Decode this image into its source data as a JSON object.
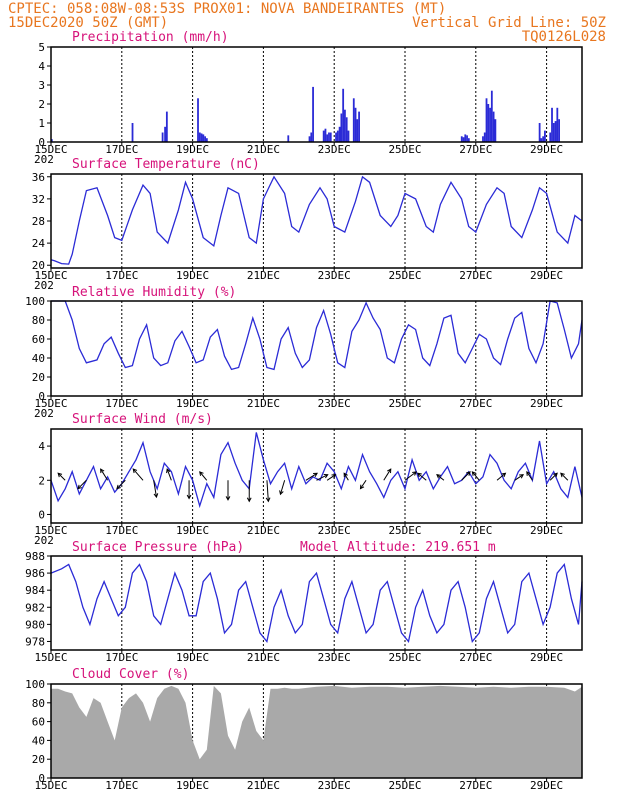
{
  "header": {
    "line1": "CPTEC:  058:08W-08:53S  PROX01: NOVA BANDEIRANTES (MT)",
    "line2_left": "15DEC2020 50Z (GMT)",
    "line2_right": "Vertical Grid Line: 50Z",
    "line3_right": "TQ0126L028"
  },
  "colors": {
    "header": "#e8761f",
    "title": "#d6127a",
    "series": "#2b2bd6",
    "cloud": "#a9a9a9",
    "arrow": "#000000"
  },
  "chart_data": [
    {
      "id": "precip",
      "type": "bar",
      "title": "Precipitation (mm/h)",
      "ylim": [
        0,
        5
      ],
      "yticks": [
        0,
        1,
        2,
        3,
        4,
        5
      ],
      "xlim": [
        0,
        15
      ],
      "xtick_labels": [
        "15DEC",
        "17DEC",
        "19DEC",
        "21DEC",
        "23DEC",
        "25DEC",
        "27DEC",
        "29DEC"
      ],
      "x_extra_label": "202",
      "x": [
        0.02,
        2.3,
        3.15,
        3.22,
        3.27,
        4.15,
        4.2,
        4.25,
        4.3,
        4.35,
        4.4,
        6.7,
        7.3,
        7.35,
        7.4,
        7.7,
        7.75,
        7.8,
        7.85,
        7.9,
        8.05,
        8.1,
        8.15,
        8.2,
        8.25,
        8.3,
        8.35,
        8.4,
        8.55,
        8.6,
        8.65,
        8.7,
        11.6,
        11.65,
        11.7,
        11.75,
        11.8,
        12.2,
        12.25,
        12.3,
        12.35,
        12.4,
        12.45,
        12.5,
        12.55,
        13.8,
        13.85,
        13.9,
        13.95,
        14.1,
        14.15,
        14.2,
        14.25,
        14.3,
        14.35
      ],
      "values": [
        0.15,
        1.0,
        0.5,
        0.8,
        1.6,
        2.3,
        0.5,
        0.45,
        0.4,
        0.3,
        0.2,
        0.35,
        0.3,
        0.5,
        2.9,
        0.6,
        0.7,
        0.4,
        0.5,
        0.5,
        0.5,
        0.6,
        0.8,
        1.5,
        2.8,
        1.7,
        1.3,
        0.6,
        2.3,
        1.8,
        1.2,
        1.6,
        0.3,
        0.25,
        0.4,
        0.35,
        0.2,
        0.3,
        0.5,
        2.3,
        2.0,
        1.8,
        2.7,
        1.6,
        1.2,
        1.0,
        0.2,
        0.3,
        0.6,
        0.5,
        1.8,
        1.0,
        1.1,
        1.8,
        1.2
      ]
    },
    {
      "id": "temp",
      "type": "line",
      "title": "Surface Temperature (nC)",
      "ylim": [
        19.5,
        36.5
      ],
      "yticks": [
        20,
        24,
        28,
        32,
        36
      ],
      "xlim": [
        0,
        15
      ],
      "xtick_labels": [
        "15DEC",
        "17DEC",
        "19DEC",
        "21DEC",
        "23DEC",
        "25DEC",
        "27DEC",
        "29DEC"
      ],
      "x_extra_label": "202",
      "x": [
        0,
        0.1,
        0.3,
        0.5,
        0.6,
        0.8,
        1.0,
        1.3,
        1.6,
        1.8,
        2.0,
        2.3,
        2.6,
        2.8,
        3.0,
        3.3,
        3.6,
        3.8,
        4.0,
        4.3,
        4.6,
        4.8,
        5.0,
        5.3,
        5.6,
        5.8,
        6.0,
        6.3,
        6.6,
        6.8,
        7.0,
        7.3,
        7.6,
        7.8,
        8.0,
        8.3,
        8.6,
        8.8,
        9.0,
        9.3,
        9.6,
        9.8,
        10.0,
        10.3,
        10.6,
        10.8,
        11.0,
        11.3,
        11.6,
        11.8,
        12.0,
        12.3,
        12.6,
        12.8,
        13.0,
        13.3,
        13.6,
        13.8,
        14.0,
        14.3,
        14.6,
        14.8,
        15.0
      ],
      "values": [
        21,
        20.8,
        20.3,
        20.2,
        22,
        28,
        33.5,
        34,
        29,
        25,
        24.5,
        30,
        34.5,
        33,
        26,
        24,
        30,
        35,
        32,
        25,
        23.5,
        29,
        34,
        33,
        25,
        24,
        32,
        36,
        33,
        27,
        26,
        31,
        34,
        32,
        27,
        26,
        31.5,
        36,
        35,
        29,
        27,
        29,
        33,
        32,
        27,
        26,
        31,
        35,
        32,
        27,
        26,
        31,
        34,
        33,
        27,
        25,
        30,
        34,
        33,
        26,
        24,
        29,
        28
      ]
    },
    {
      "id": "rh",
      "type": "line",
      "title": "Relative Humidity (%)",
      "ylim": [
        0,
        100
      ],
      "yticks": [
        0,
        20,
        40,
        60,
        80,
        100
      ],
      "xlim": [
        0,
        15
      ],
      "xtick_labels": [
        "15DEC",
        "17DEC",
        "19DEC",
        "21DEC",
        "23DEC",
        "25DEC",
        "27DEC",
        "29DEC"
      ],
      "x_extra_label": "202",
      "x": [
        0,
        0.4,
        0.6,
        0.8,
        1.0,
        1.3,
        1.5,
        1.7,
        1.9,
        2.1,
        2.3,
        2.5,
        2.7,
        2.9,
        3.1,
        3.3,
        3.5,
        3.7,
        3.9,
        4.1,
        4.3,
        4.5,
        4.7,
        4.9,
        5.1,
        5.3,
        5.5,
        5.7,
        5.9,
        6.1,
        6.3,
        6.5,
        6.7,
        6.9,
        7.1,
        7.3,
        7.5,
        7.7,
        7.9,
        8.1,
        8.3,
        8.5,
        8.7,
        8.9,
        9.1,
        9.3,
        9.5,
        9.7,
        9.9,
        10.1,
        10.3,
        10.5,
        10.7,
        10.9,
        11.1,
        11.3,
        11.5,
        11.7,
        11.9,
        12.1,
        12.3,
        12.5,
        12.7,
        12.9,
        13.1,
        13.3,
        13.5,
        13.7,
        13.9,
        14.1,
        14.3,
        14.5,
        14.7,
        14.9,
        15.0
      ],
      "values": [
        100,
        100,
        80,
        50,
        35,
        38,
        55,
        62,
        45,
        30,
        32,
        60,
        75,
        40,
        32,
        35,
        58,
        68,
        52,
        35,
        38,
        62,
        70,
        42,
        28,
        30,
        55,
        82,
        60,
        30,
        28,
        60,
        72,
        45,
        30,
        38,
        72,
        90,
        65,
        35,
        30,
        68,
        80,
        98,
        82,
        70,
        40,
        35,
        60,
        75,
        70,
        40,
        32,
        55,
        82,
        85,
        45,
        35,
        50,
        65,
        60,
        40,
        33,
        60,
        82,
        88,
        50,
        35,
        55,
        100,
        98,
        70,
        40,
        55,
        80
      ]
    },
    {
      "id": "wind",
      "type": "line",
      "title": "Surface Wind (m/s)",
      "ylim": [
        -0.5,
        5
      ],
      "yticks": [
        0,
        2,
        4
      ],
      "xlim": [
        0,
        15
      ],
      "xtick_labels": [
        "15DEC",
        "17DEC",
        "19DEC",
        "21DEC",
        "23DEC",
        "25DEC",
        "27DEC",
        "29DEC"
      ],
      "x_extra_label": "202",
      "x": [
        0,
        0.2,
        0.4,
        0.6,
        0.8,
        1.0,
        1.2,
        1.4,
        1.6,
        1.8,
        2.0,
        2.2,
        2.4,
        2.6,
        2.8,
        3.0,
        3.2,
        3.4,
        3.6,
        3.8,
        4.0,
        4.2,
        4.4,
        4.6,
        4.8,
        5.0,
        5.2,
        5.4,
        5.6,
        5.8,
        6.0,
        6.2,
        6.4,
        6.6,
        6.8,
        7.0,
        7.2,
        7.4,
        7.6,
        7.8,
        8.0,
        8.2,
        8.4,
        8.6,
        8.8,
        9.0,
        9.2,
        9.4,
        9.6,
        9.8,
        10.0,
        10.2,
        10.4,
        10.6,
        10.8,
        11.0,
        11.2,
        11.4,
        11.6,
        11.8,
        12.0,
        12.2,
        12.4,
        12.6,
        12.8,
        13.0,
        13.2,
        13.4,
        13.6,
        13.8,
        14.0,
        14.2,
        14.4,
        14.6,
        14.8,
        15.0
      ],
      "values": [
        2.0,
        0.8,
        1.5,
        2.5,
        1.2,
        2.0,
        2.8,
        1.5,
        2.2,
        1.3,
        1.8,
        2.5,
        3.2,
        4.2,
        2.5,
        1.5,
        3.0,
        2.5,
        1.2,
        2.8,
        2.0,
        0.5,
        1.8,
        1.0,
        3.5,
        4.2,
        3.0,
        2.0,
        1.5,
        4.8,
        3.2,
        1.8,
        2.5,
        3.0,
        1.5,
        2.8,
        1.8,
        2.2,
        2.0,
        3.0,
        2.5,
        1.5,
        2.8,
        2.0,
        3.5,
        2.5,
        1.8,
        1.0,
        2.0,
        2.5,
        1.5,
        3.2,
        2.0,
        2.5,
        1.5,
        2.2,
        2.8,
        1.8,
        2.0,
        2.5,
        1.8,
        2.2,
        3.5,
        3.0,
        2.0,
        1.5,
        2.5,
        3.0,
        2.0,
        4.3,
        1.8,
        2.5,
        1.5,
        1.0,
        2.8,
        1.0
      ],
      "arrows_x": [
        0.4,
        1.0,
        1.6,
        2.1,
        2.6,
        2.9,
        3.4,
        3.9,
        4.4,
        5.0,
        5.6,
        6.1,
        6.6,
        7.2,
        7.5,
        7.8,
        8.4,
        8.9,
        9.4,
        10.0,
        10.6,
        11.1,
        11.6,
        12.1,
        12.6,
        13.1,
        13.6,
        14.1,
        14.6
      ],
      "arrows_u": [
        -0.5,
        -0.6,
        -0.5,
        -0.6,
        -0.7,
        0.2,
        -0.3,
        0.0,
        -0.5,
        0.0,
        0.0,
        0.1,
        -0.3,
        0.8,
        0.8,
        0.6,
        -0.3,
        -0.4,
        0.5,
        0.8,
        -0.6,
        -0.5,
        0.6,
        -0.5,
        0.6,
        0.6,
        -0.4,
        0.5,
        -0.5
      ],
      "arrows_v": [
        0.5,
        -0.6,
        0.8,
        -0.6,
        0.8,
        -1.2,
        0.8,
        -1.3,
        0.6,
        -1.4,
        -1.5,
        -1.5,
        -1.0,
        0.5,
        0.4,
        0.4,
        0.5,
        -0.6,
        0.8,
        0.6,
        0.5,
        0.4,
        0.6,
        0.6,
        0.5,
        0.4,
        0.6,
        0.5,
        0.5
      ]
    },
    {
      "id": "pres",
      "type": "line",
      "title": "Surface Pressure (hPa)",
      "annotation": "Model Altitude: 219.651 m",
      "ylim": [
        977,
        988
      ],
      "yticks": [
        978,
        980,
        982,
        984,
        986,
        988
      ],
      "xlim": [
        0,
        15
      ],
      "xtick_labels": [
        "15DEC",
        "17DEC",
        "19DEC",
        "21DEC",
        "23DEC",
        "25DEC",
        "27DEC",
        "29DEC"
      ],
      "x": [
        0,
        0.3,
        0.5,
        0.7,
        0.9,
        1.1,
        1.3,
        1.5,
        1.7,
        1.9,
        2.1,
        2.3,
        2.5,
        2.7,
        2.9,
        3.1,
        3.3,
        3.5,
        3.7,
        3.9,
        4.1,
        4.3,
        4.5,
        4.7,
        4.9,
        5.1,
        5.3,
        5.5,
        5.7,
        5.9,
        6.1,
        6.3,
        6.5,
        6.7,
        6.9,
        7.1,
        7.3,
        7.5,
        7.7,
        7.9,
        8.1,
        8.3,
        8.5,
        8.7,
        8.9,
        9.1,
        9.3,
        9.5,
        9.7,
        9.9,
        10.1,
        10.3,
        10.5,
        10.7,
        10.9,
        11.1,
        11.3,
        11.5,
        11.7,
        11.9,
        12.1,
        12.3,
        12.5,
        12.7,
        12.9,
        13.1,
        13.3,
        13.5,
        13.7,
        13.9,
        14.1,
        14.3,
        14.5,
        14.7,
        14.9,
        15.0
      ],
      "values": [
        986,
        986.5,
        987,
        985,
        982,
        980,
        983,
        985,
        983,
        981,
        982,
        986,
        987,
        985,
        981,
        980,
        983,
        986,
        984,
        981,
        981,
        985,
        986,
        983,
        979,
        980,
        984,
        985,
        982,
        979,
        978,
        982,
        984,
        981,
        979,
        980,
        985,
        986,
        983,
        980,
        979,
        983,
        985,
        982,
        979,
        980,
        984,
        985,
        982,
        979,
        978,
        982,
        984,
        981,
        979,
        980,
        984,
        985,
        982,
        978,
        979,
        983,
        985,
        982,
        979,
        980,
        985,
        986,
        983,
        980,
        982,
        986,
        987,
        983,
        980,
        985
      ]
    },
    {
      "id": "cloud",
      "type": "area",
      "title": "Cloud Cover (%)",
      "ylim": [
        0,
        100
      ],
      "yticks": [
        0,
        20,
        40,
        60,
        80,
        100
      ],
      "xlim": [
        0,
        15
      ],
      "xtick_labels": [
        "15DEC",
        "17DEC",
        "19DEC",
        "21DEC",
        "23DEC",
        "25DEC",
        "27DEC",
        "29DEC"
      ],
      "x": [
        0,
        0.2,
        0.4,
        0.6,
        0.8,
        1.0,
        1.2,
        1.4,
        1.6,
        1.8,
        2.0,
        2.2,
        2.4,
        2.6,
        2.8,
        3.0,
        3.2,
        3.4,
        3.6,
        3.8,
        4.0,
        4.2,
        4.4,
        4.6,
        4.8,
        5.0,
        5.2,
        5.4,
        5.6,
        5.8,
        6.0,
        6.2,
        6.4,
        6.6,
        6.8,
        7.0,
        7.5,
        8.0,
        8.5,
        9.0,
        9.5,
        10.0,
        10.5,
        11.0,
        11.5,
        12.0,
        12.5,
        13.0,
        13.5,
        14.0,
        14.5,
        14.8,
        15.0
      ],
      "values": [
        95,
        95,
        92,
        90,
        75,
        65,
        85,
        80,
        60,
        40,
        75,
        85,
        90,
        80,
        60,
        85,
        95,
        98,
        95,
        80,
        40,
        20,
        30,
        98,
        90,
        45,
        30,
        60,
        75,
        50,
        40,
        95,
        95,
        96,
        95,
        95,
        97,
        98,
        96,
        97,
        97,
        96,
        97,
        98,
        97,
        96,
        97,
        96,
        97,
        97,
        96,
        92,
        97
      ]
    }
  ]
}
